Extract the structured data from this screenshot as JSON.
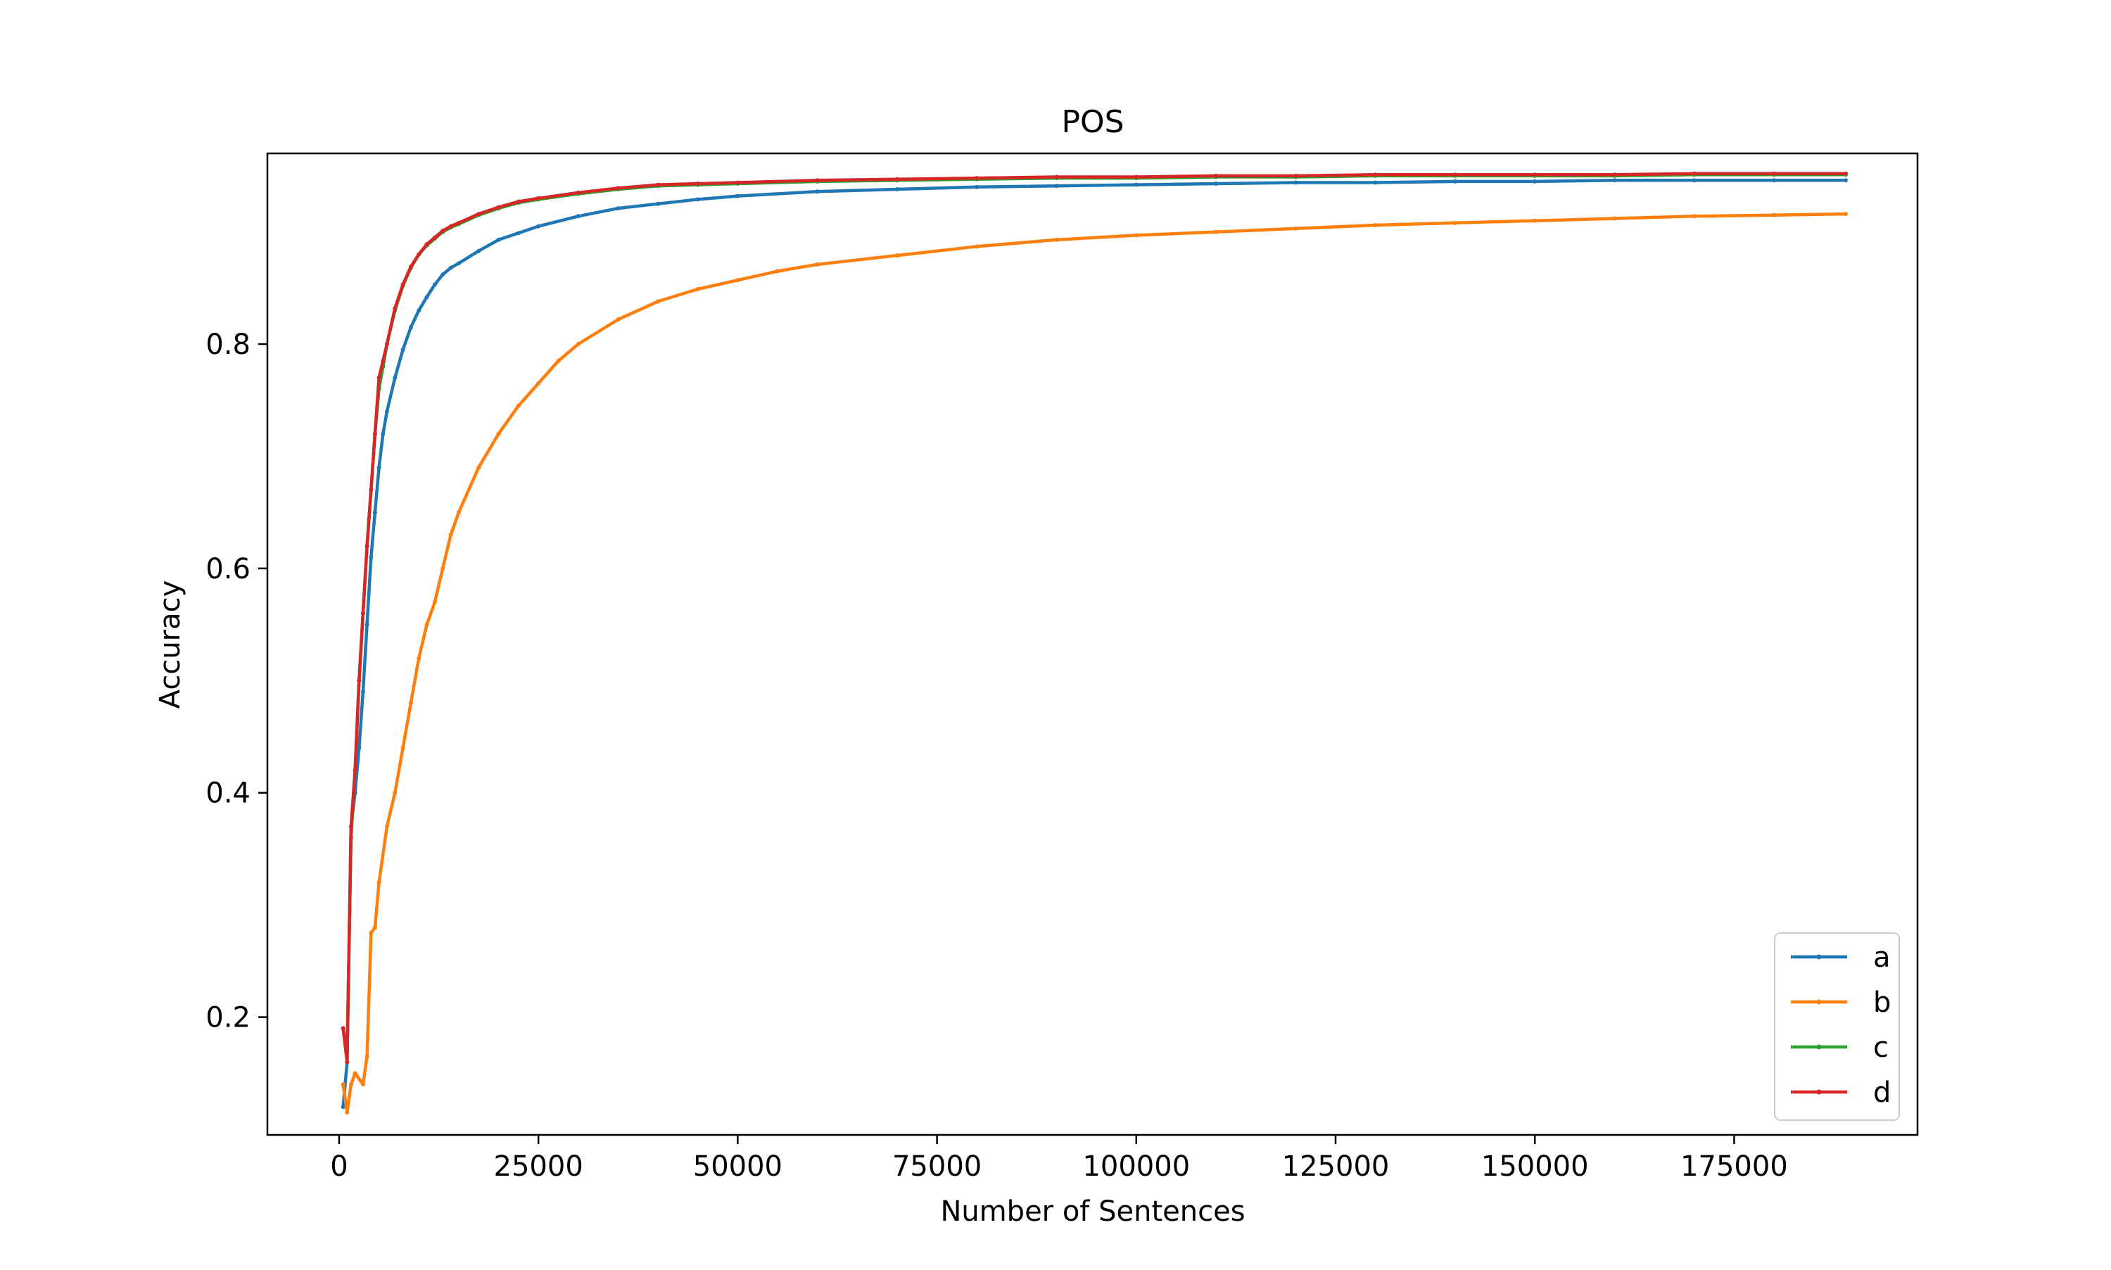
{
  "chart_data": {
    "type": "line",
    "title": "POS",
    "xlabel": "Number of Sentences",
    "ylabel": "Accuracy",
    "xlim": [
      -9000,
      198000
    ],
    "ylim": [
      0.095,
      0.97
    ],
    "xticks": [
      0,
      25000,
      50000,
      75000,
      100000,
      125000,
      150000,
      175000
    ],
    "yticks": [
      0.2,
      0.4,
      0.6,
      0.8
    ],
    "grid": false,
    "legend_position": "lower right",
    "series": [
      {
        "name": "a",
        "color": "#1f77b4",
        "x": [
          500,
          1000,
          1500,
          2000,
          2500,
          3000,
          3500,
          4000,
          4500,
          5000,
          5500,
          6000,
          7000,
          8000,
          9000,
          10000,
          11000,
          12000,
          13000,
          14000,
          15000,
          17500,
          20000,
          22500,
          25000,
          30000,
          35000,
          40000,
          45000,
          50000,
          60000,
          70000,
          80000,
          90000,
          100000,
          110000,
          120000,
          130000,
          140000,
          150000,
          160000,
          170000,
          180000,
          189000
        ],
        "y": [
          0.12,
          0.16,
          0.37,
          0.4,
          0.44,
          0.49,
          0.55,
          0.61,
          0.65,
          0.69,
          0.72,
          0.74,
          0.77,
          0.795,
          0.815,
          0.83,
          0.842,
          0.853,
          0.862,
          0.868,
          0.872,
          0.883,
          0.893,
          0.899,
          0.905,
          0.914,
          0.921,
          0.925,
          0.929,
          0.932,
          0.936,
          0.938,
          0.94,
          0.941,
          0.942,
          0.943,
          0.944,
          0.944,
          0.945,
          0.945,
          0.946,
          0.946,
          0.946,
          0.946
        ]
      },
      {
        "name": "b",
        "color": "#ff7f0e",
        "x": [
          500,
          1000,
          1500,
          2000,
          3000,
          3500,
          4000,
          4500,
          5000,
          6000,
          7000,
          8000,
          9000,
          10000,
          11000,
          12000,
          13000,
          14000,
          15000,
          17500,
          20000,
          22500,
          25000,
          27500,
          30000,
          35000,
          40000,
          45000,
          50000,
          55000,
          60000,
          70000,
          80000,
          90000,
          100000,
          110000,
          120000,
          130000,
          140000,
          150000,
          160000,
          170000,
          180000,
          189000
        ],
        "y": [
          0.14,
          0.115,
          0.14,
          0.15,
          0.14,
          0.165,
          0.275,
          0.28,
          0.32,
          0.37,
          0.4,
          0.44,
          0.48,
          0.52,
          0.55,
          0.57,
          0.6,
          0.63,
          0.65,
          0.69,
          0.72,
          0.745,
          0.765,
          0.785,
          0.8,
          0.822,
          0.838,
          0.849,
          0.857,
          0.865,
          0.871,
          0.879,
          0.887,
          0.893,
          0.897,
          0.9,
          0.903,
          0.906,
          0.908,
          0.91,
          0.912,
          0.914,
          0.915,
          0.916
        ]
      },
      {
        "name": "c",
        "color": "#2ca02c",
        "x": [
          500,
          1000,
          1500,
          2000,
          2500,
          3000,
          3500,
          4000,
          4500,
          5000,
          5500,
          6000,
          7000,
          8000,
          9000,
          10000,
          11000,
          12000,
          13000,
          14000,
          15000,
          17500,
          20000,
          22500,
          25000,
          30000,
          35000,
          40000,
          45000,
          50000,
          60000,
          70000,
          80000,
          90000,
          100000,
          110000,
          120000,
          130000,
          140000,
          150000,
          160000,
          170000,
          180000,
          189000
        ],
        "y": [
          0.19,
          0.17,
          0.36,
          0.42,
          0.5,
          0.56,
          0.62,
          0.67,
          0.72,
          0.76,
          0.78,
          0.8,
          0.83,
          0.852,
          0.868,
          0.88,
          0.888,
          0.894,
          0.9,
          0.904,
          0.907,
          0.915,
          0.921,
          0.926,
          0.929,
          0.934,
          0.938,
          0.941,
          0.942,
          0.943,
          0.945,
          0.946,
          0.947,
          0.948,
          0.948,
          0.949,
          0.949,
          0.95,
          0.95,
          0.95,
          0.95,
          0.951,
          0.951,
          0.951
        ]
      },
      {
        "name": "d",
        "color": "#d62728",
        "x": [
          500,
          1000,
          1500,
          2000,
          2500,
          3000,
          3500,
          4000,
          4500,
          5000,
          5500,
          6000,
          7000,
          8000,
          9000,
          10000,
          11000,
          12000,
          13000,
          14000,
          15000,
          17500,
          20000,
          22500,
          25000,
          30000,
          35000,
          40000,
          45000,
          50000,
          60000,
          70000,
          80000,
          90000,
          100000,
          110000,
          120000,
          130000,
          140000,
          150000,
          160000,
          170000,
          180000,
          189000
        ],
        "y": [
          0.19,
          0.16,
          0.37,
          0.42,
          0.5,
          0.56,
          0.62,
          0.67,
          0.72,
          0.77,
          0.785,
          0.8,
          0.832,
          0.853,
          0.869,
          0.88,
          0.889,
          0.895,
          0.901,
          0.905,
          0.908,
          0.916,
          0.922,
          0.927,
          0.93,
          0.935,
          0.939,
          0.942,
          0.943,
          0.944,
          0.946,
          0.947,
          0.948,
          0.949,
          0.949,
          0.95,
          0.95,
          0.951,
          0.951,
          0.951,
          0.951,
          0.952,
          0.952,
          0.952
        ]
      }
    ]
  }
}
